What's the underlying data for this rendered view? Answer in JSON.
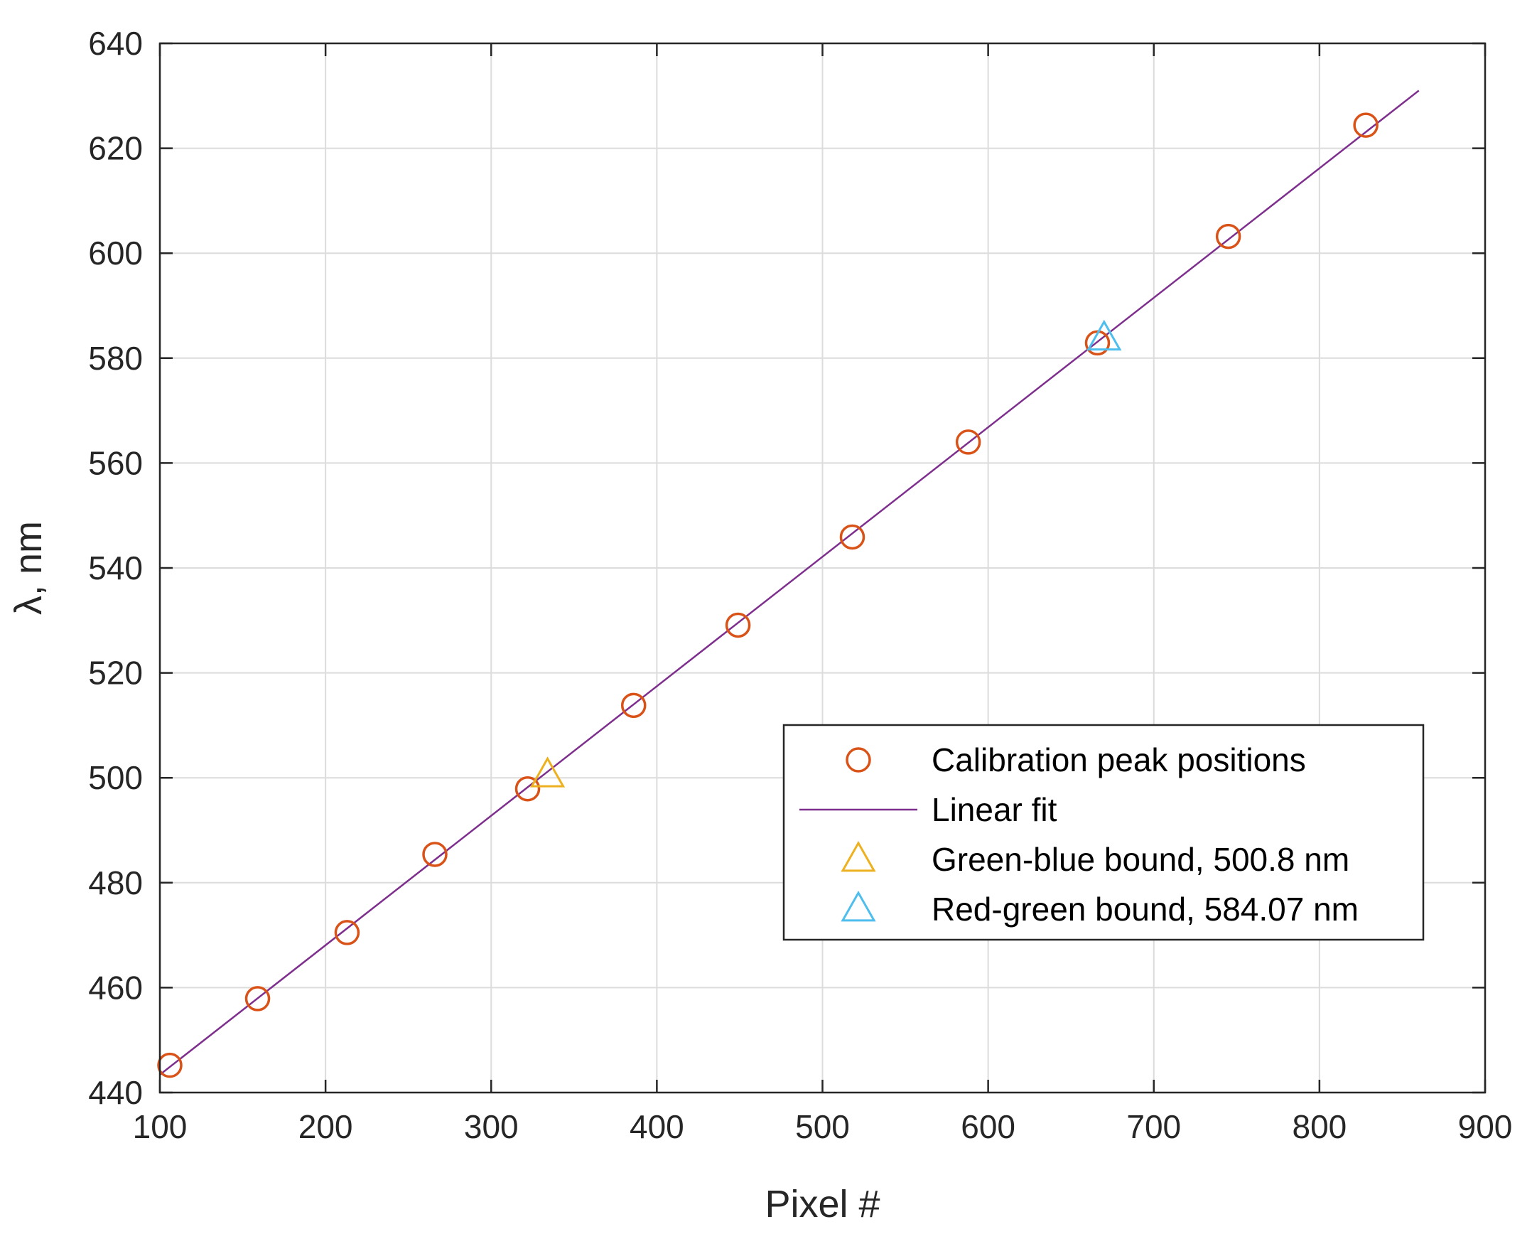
{
  "chart_data": {
    "type": "scatter",
    "xlabel": "Pixel #",
    "ylabel": "λ, nm",
    "xlim": [
      100,
      900
    ],
    "ylim": [
      440,
      640
    ],
    "xticks": [
      100,
      200,
      300,
      400,
      500,
      600,
      700,
      800,
      900
    ],
    "yticks": [
      440,
      460,
      480,
      500,
      520,
      540,
      560,
      580,
      600,
      620,
      640
    ],
    "grid": true,
    "legend_position": "lower-right",
    "series": [
      {
        "name": "Calibration peak positions",
        "kind": "markers",
        "marker": "circle",
        "color": "#D95319",
        "points": [
          {
            "x": 106,
            "y": 445.2
          },
          {
            "x": 159,
            "y": 457.9
          },
          {
            "x": 213,
            "y": 470.5
          },
          {
            "x": 266,
            "y": 485.4
          },
          {
            "x": 322,
            "y": 497.9
          },
          {
            "x": 386,
            "y": 513.8
          },
          {
            "x": 449,
            "y": 529.1
          },
          {
            "x": 518,
            "y": 545.9
          },
          {
            "x": 588,
            "y": 564.0
          },
          {
            "x": 666,
            "y": 582.9
          },
          {
            "x": 745,
            "y": 603.2
          },
          {
            "x": 828,
            "y": 624.4
          }
        ]
      },
      {
        "name": "Linear fit",
        "kind": "line",
        "color": "#7E2F8E",
        "points": [
          {
            "x": 100,
            "y": 443.4
          },
          {
            "x": 860,
            "y": 631.0
          }
        ]
      },
      {
        "name": "Green-blue bound, 500.8 nm",
        "kind": "markers",
        "marker": "triangle",
        "color": "#EDB120",
        "points": [
          {
            "x": 334,
            "y": 500.8
          }
        ]
      },
      {
        "name": "Red-green bound, 584.07 nm",
        "kind": "markers",
        "marker": "triangle",
        "color": "#4DBEEE",
        "points": [
          {
            "x": 670,
            "y": 584.07
          }
        ]
      }
    ]
  }
}
